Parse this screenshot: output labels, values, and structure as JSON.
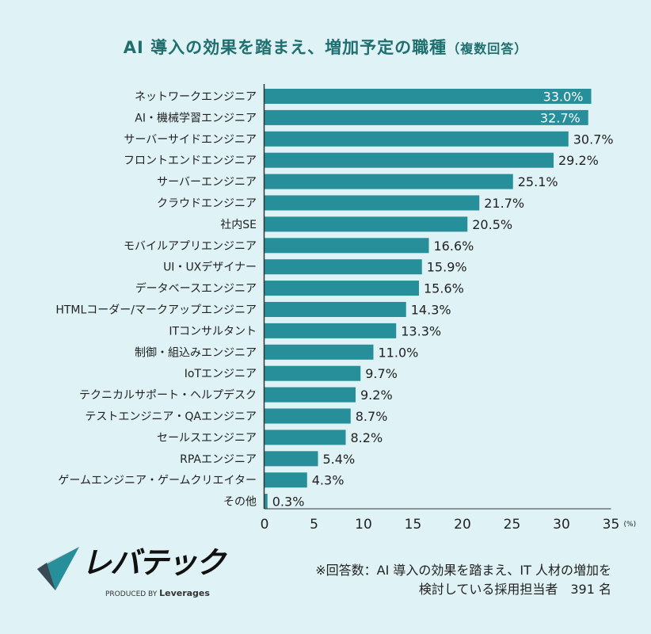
{
  "chart_data": {
    "type": "bar",
    "orientation": "horizontal",
    "title": "AI 導入の効果を踏まえ、増加予定の職種",
    "subtitle": "（複数回答）",
    "unit_label": "(%)",
    "xlim": [
      0,
      35
    ],
    "xticks": [
      0,
      5,
      10,
      15,
      20,
      25,
      30,
      35
    ],
    "grid": false,
    "categories": [
      "ネットワークエンジニア",
      "AI・機械学習エンジニア",
      "サーバーサイドエンジニア",
      "フロントエンドエンジニア",
      "サーバーエンジニア",
      "クラウドエンジニア",
      "社内SE",
      "モバイルアプリエンジニア",
      "UI・UXデザイナー",
      "データベースエンジニア",
      "HTMLコーダー/マークアップエンジニア",
      "ITコンサルタント",
      "制御・組込みエンジニア",
      "IoTエンジニア",
      "テクニカルサポート・ヘルプデスク",
      "テストエンジニア・QAエンジニア",
      "セールスエンジニア",
      "RPAエンジニア",
      "ゲームエンジニア・ゲームクリエイター",
      "その他"
    ],
    "values": [
      33.0,
      32.7,
      30.7,
      29.2,
      25.1,
      21.7,
      20.5,
      16.6,
      15.9,
      15.6,
      14.3,
      13.3,
      11.0,
      9.7,
      9.2,
      8.7,
      8.2,
      5.4,
      4.3,
      0.3
    ],
    "value_labels": [
      "33.0%",
      "32.7%",
      "30.7%",
      "29.2%",
      "25.1%",
      "21.7%",
      "20.5%",
      "16.6%",
      "15.9%",
      "15.6%",
      "14.3%",
      "13.3%",
      "11.0%",
      "9.7%",
      "9.2%",
      "8.7%",
      "8.2%",
      "5.4%",
      "4.3%",
      "0.3%"
    ],
    "bar_color": "#268f9a"
  },
  "footnote": {
    "line1": "※回答数：AI 導入の効果を踏まえ、IT 人材の増加を",
    "line2": "検討している採用担当者　391 名"
  },
  "logo": {
    "text": "レバテック",
    "sub_prefix": "PRODUCED BY",
    "sub_brand": "Leverages"
  }
}
